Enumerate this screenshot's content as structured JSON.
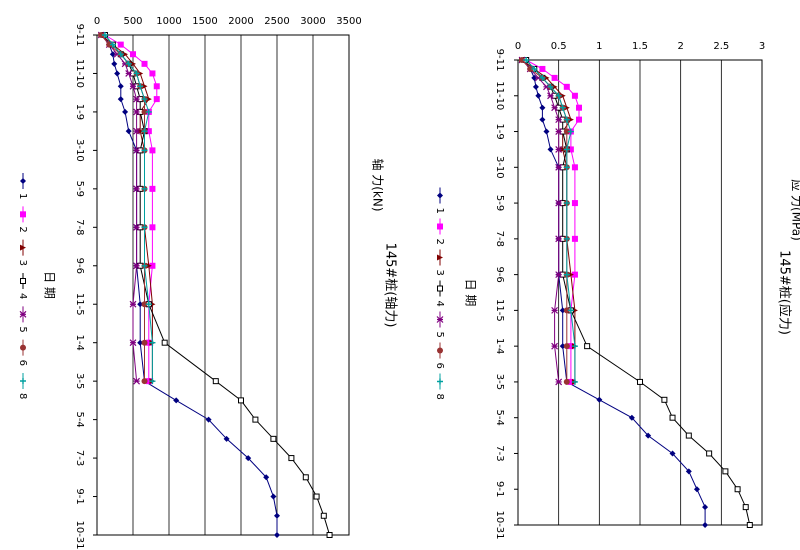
{
  "chart_data": [
    {
      "type": "line",
      "title": "145#桩(轴力)",
      "y_label": "轴 力(kN)",
      "x_label": "日 期",
      "xlim": [
        0,
        780
      ],
      "xticks": [
        {
          "value": 0,
          "label": "9-11"
        },
        {
          "value": 60,
          "label": "11-10"
        },
        {
          "value": 120,
          "label": "1-9"
        },
        {
          "value": 180,
          "label": "3-10"
        },
        {
          "value": 240,
          "label": "5-9"
        },
        {
          "value": 300,
          "label": "7-8"
        },
        {
          "value": 360,
          "label": "9-6"
        },
        {
          "value": 420,
          "label": "11-5"
        },
        {
          "value": 480,
          "label": "1-4"
        },
        {
          "value": 540,
          "label": "3-5"
        },
        {
          "value": 600,
          "label": "5-4"
        },
        {
          "value": 660,
          "label": "7-3"
        },
        {
          "value": 720,
          "label": "9-1"
        },
        {
          "value": 780,
          "label": "10-31"
        }
      ],
      "ylim": [
        0,
        3500
      ],
      "yticks": [
        0,
        500,
        1000,
        1500,
        2000,
        2500,
        3000,
        3500
      ],
      "grid": true,
      "x": [
        0,
        15,
        30,
        45,
        60,
        80,
        100,
        120,
        150,
        180,
        240,
        300,
        360,
        420,
        480,
        540,
        570,
        600,
        630,
        660,
        690,
        720,
        750,
        780
      ],
      "series": [
        {
          "name": "1",
          "color": "#000080",
          "marker": "diamond",
          "values": [
            90,
            170,
            220,
            240,
            280,
            330,
            330,
            390,
            440,
            550,
            550,
            550,
            550,
            600,
            600,
            660,
            1100,
            1550,
            1800,
            2100,
            2350,
            2450,
            2500,
            2500
          ]
        },
        {
          "name": "2",
          "color": "#ff00ff",
          "marker": "square",
          "values": [
            110,
            330,
            500,
            660,
            770,
            830,
            830,
            720,
            720,
            770,
            770,
            770,
            770,
            720,
            720,
            720,
            null,
            null,
            null,
            null,
            null,
            null,
            null,
            null
          ]
        },
        {
          "name": "3",
          "color": "#800000",
          "marker": "triangle",
          "values": [
            60,
            220,
            390,
            500,
            600,
            660,
            720,
            600,
            600,
            660,
            660,
            660,
            720,
            770,
            770,
            770,
            null,
            null,
            null,
            null,
            null,
            null,
            null,
            null
          ]
        },
        {
          "name": "4",
          "color": "#000000",
          "marker": "open-square",
          "values": [
            110,
            220,
            330,
            440,
            500,
            550,
            600,
            600,
            660,
            600,
            600,
            600,
            600,
            720,
            940,
            1650,
            2000,
            2200,
            2450,
            2700,
            2900,
            3050,
            3150,
            3230
          ]
        },
        {
          "name": "5",
          "color": "#800080",
          "marker": "star",
          "values": [
            60,
            170,
            280,
            390,
            440,
            500,
            550,
            550,
            550,
            550,
            550,
            550,
            550,
            500,
            500,
            550,
            null,
            null,
            null,
            null,
            null,
            null,
            null,
            null
          ]
        },
        {
          "name": "6",
          "color": "#993333",
          "marker": "circle",
          "values": [
            60,
            170,
            330,
            440,
            550,
            600,
            660,
            660,
            660,
            660,
            660,
            660,
            660,
            660,
            660,
            660,
            null,
            null,
            null,
            null,
            null,
            null,
            null,
            null
          ]
        },
        {
          "name": "8",
          "color": "#00a0a0",
          "marker": "plus",
          "values": [
            110,
            220,
            330,
            440,
            550,
            600,
            660,
            720,
            660,
            660,
            660,
            660,
            660,
            720,
            770,
            770,
            null,
            null,
            null,
            null,
            null,
            null,
            null,
            null
          ]
        }
      ]
    },
    {
      "type": "line",
      "title": "145#桩(应力)",
      "y_label": "应 力(MPa)",
      "x_label": "日 期",
      "xlim": [
        0,
        780
      ],
      "xticks": [
        {
          "value": 0,
          "label": "9-11"
        },
        {
          "value": 60,
          "label": "11-10"
        },
        {
          "value": 120,
          "label": "1-9"
        },
        {
          "value": 180,
          "label": "3-10"
        },
        {
          "value": 240,
          "label": "5-9"
        },
        {
          "value": 300,
          "label": "7-8"
        },
        {
          "value": 360,
          "label": "9-6"
        },
        {
          "value": 420,
          "label": "11-5"
        },
        {
          "value": 480,
          "label": "1-4"
        },
        {
          "value": 540,
          "label": "3-5"
        },
        {
          "value": 600,
          "label": "5-4"
        },
        {
          "value": 660,
          "label": "7-3"
        },
        {
          "value": 720,
          "label": "9-1"
        },
        {
          "value": 780,
          "label": "10-31"
        }
      ],
      "ylim": [
        0,
        3
      ],
      "yticks": [
        0,
        0.5,
        1,
        1.5,
        2,
        2.5,
        3
      ],
      "grid": true,
      "x": [
        0,
        15,
        30,
        45,
        60,
        80,
        100,
        120,
        150,
        180,
        240,
        300,
        360,
        420,
        480,
        540,
        570,
        600,
        630,
        660,
        690,
        720,
        750,
        780
      ],
      "series": [
        {
          "name": "1",
          "color": "#000080",
          "marker": "diamond",
          "values": [
            0.08,
            0.15,
            0.2,
            0.22,
            0.25,
            0.3,
            0.3,
            0.35,
            0.4,
            0.5,
            0.5,
            0.5,
            0.5,
            0.55,
            0.55,
            0.6,
            1.0,
            1.4,
            1.6,
            1.9,
            2.1,
            2.2,
            2.3,
            2.3
          ]
        },
        {
          "name": "2",
          "color": "#ff00ff",
          "marker": "square",
          "values": [
            0.1,
            0.3,
            0.45,
            0.6,
            0.7,
            0.75,
            0.75,
            0.65,
            0.65,
            0.7,
            0.7,
            0.7,
            0.7,
            0.65,
            0.65,
            0.65,
            null,
            null,
            null,
            null,
            null,
            null,
            null,
            null
          ]
        },
        {
          "name": "3",
          "color": "#800000",
          "marker": "triangle",
          "values": [
            0.05,
            0.2,
            0.35,
            0.45,
            0.55,
            0.6,
            0.65,
            0.55,
            0.55,
            0.6,
            0.6,
            0.6,
            0.65,
            0.7,
            0.7,
            0.7,
            null,
            null,
            null,
            null,
            null,
            null,
            null,
            null
          ]
        },
        {
          "name": "4",
          "color": "#000000",
          "marker": "open-square",
          "values": [
            0.1,
            0.2,
            0.3,
            0.4,
            0.45,
            0.5,
            0.55,
            0.55,
            0.6,
            0.55,
            0.55,
            0.55,
            0.55,
            0.65,
            0.85,
            1.5,
            1.8,
            1.9,
            2.1,
            2.35,
            2.55,
            2.7,
            2.8,
            2.85
          ]
        },
        {
          "name": "5",
          "color": "#800080",
          "marker": "star",
          "values": [
            0.05,
            0.15,
            0.25,
            0.35,
            0.4,
            0.45,
            0.5,
            0.5,
            0.5,
            0.5,
            0.5,
            0.5,
            0.5,
            0.45,
            0.45,
            0.5,
            null,
            null,
            null,
            null,
            null,
            null,
            null,
            null
          ]
        },
        {
          "name": "6",
          "color": "#993333",
          "marker": "circle",
          "values": [
            0.05,
            0.15,
            0.3,
            0.4,
            0.5,
            0.55,
            0.6,
            0.6,
            0.6,
            0.6,
            0.6,
            0.6,
            0.6,
            0.6,
            0.6,
            0.6,
            null,
            null,
            null,
            null,
            null,
            null,
            null,
            null
          ]
        },
        {
          "name": "8",
          "color": "#00a0a0",
          "marker": "plus",
          "values": [
            0.1,
            0.2,
            0.3,
            0.4,
            0.5,
            0.55,
            0.6,
            0.65,
            0.6,
            0.6,
            0.6,
            0.6,
            0.6,
            0.65,
            0.7,
            0.7,
            null,
            null,
            null,
            null,
            null,
            null,
            null,
            null
          ]
        }
      ]
    }
  ]
}
